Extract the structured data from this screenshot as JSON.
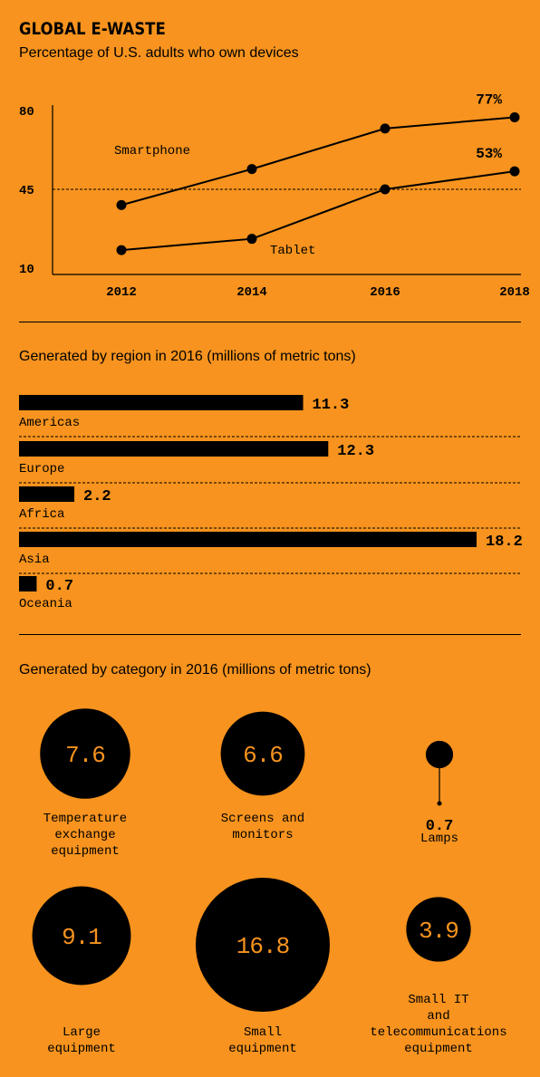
{
  "header": {
    "title": "GLOBAL E-WASTE",
    "subtitle": "Percentage of U.S. adults who own devices"
  },
  "sections": {
    "region_title": "Generated by region in 2016 (millions of metric tons)",
    "category_title": "Generated by category in 2016 (millions of metric tons)"
  },
  "colors": {
    "background": "#F7931E",
    "ink": "#000000"
  },
  "chart_data": [
    {
      "type": "line",
      "title": "Percentage of U.S. adults who own devices",
      "x": [
        "2012",
        "2014",
        "2016",
        "2018"
      ],
      "yticks": [
        "80",
        "45",
        "10"
      ],
      "ylim": [
        10,
        80
      ],
      "reference_line": 45,
      "series": [
        {
          "name": "Smartphone",
          "values": [
            38,
            54,
            72,
            77
          ],
          "end_label": "77%"
        },
        {
          "name": "Tablet",
          "values": [
            18,
            23,
            45,
            53
          ],
          "end_label": "53%"
        }
      ]
    },
    {
      "type": "bar",
      "title": "Generated by region in 2016 (millions of metric tons)",
      "categories": [
        "Americas",
        "Europe",
        "Africa",
        "Asia",
        "Oceania"
      ],
      "values": [
        11.3,
        12.3,
        2.2,
        18.2,
        0.7
      ],
      "value_labels": [
        "11.3",
        "12.3",
        "2.2",
        "18.2",
        "0.7"
      ],
      "xlim": [
        0,
        18.2
      ]
    },
    {
      "type": "bubble",
      "title": "Generated by category in 2016 (millions of metric tons)",
      "categories": [
        "Temperature exchange equipment",
        "Screens and monitors",
        "Lamps",
        "Large equipment",
        "Small equipment",
        "Small IT and telecommunications equipment"
      ],
      "values": [
        7.6,
        6.6,
        0.7,
        9.1,
        16.8,
        3.9
      ],
      "value_labels": [
        "7.6",
        "6.6",
        "0.7",
        "9.1",
        "16.8",
        "3.9"
      ],
      "label_lines": [
        [
          "Temperature",
          "exchange",
          "equipment"
        ],
        [
          "Screens and",
          "monitors"
        ],
        [
          "Lamps"
        ],
        [
          "Large",
          "equipment"
        ],
        [
          "Small",
          "equipment"
        ],
        [
          "Small IT",
          "and",
          "telecommunications",
          "equipment"
        ]
      ]
    }
  ]
}
